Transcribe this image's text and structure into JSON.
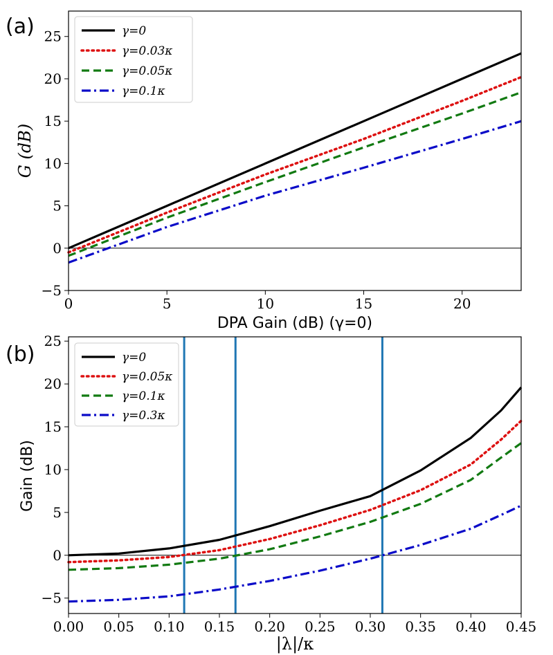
{
  "panels": [
    {
      "label": "(a)",
      "xlabel": "DPA Gain (dB) (γ=0)",
      "ylabel": "G (dB)",
      "legend_position": "top-left",
      "chart_data": {
        "type": "line",
        "xlim": [
          0,
          23
        ],
        "ylim": [
          -5,
          28
        ],
        "xticks": [
          0,
          5,
          10,
          15,
          20
        ],
        "xtick_labels": [
          "0",
          "5",
          "10",
          "15",
          "20"
        ],
        "yticks": [
          -5,
          0,
          5,
          10,
          15,
          20,
          25
        ],
        "ytick_labels": [
          "−5",
          "0",
          "5",
          "10",
          "15",
          "20",
          "25"
        ],
        "hline": 0,
        "vlines": [],
        "series": [
          {
            "name": "γ=0",
            "color": "#000000",
            "dash": "solid",
            "x": [
              0,
              5,
              10,
              15,
              20,
              23
            ],
            "y": [
              0,
              5,
              10,
              15,
              20,
              23
            ]
          },
          {
            "name": "γ=0.03κ",
            "color": "#dd1111",
            "dash": "dotted",
            "x": [
              0,
              5,
              10,
              15,
              20,
              23
            ],
            "y": [
              -0.5,
              4.2,
              8.7,
              12.9,
              17.4,
              20.2
            ]
          },
          {
            "name": "γ=0.05κ",
            "color": "#127a12",
            "dash": "dashed",
            "x": [
              0,
              5,
              10,
              15,
              20,
              23
            ],
            "y": [
              -0.9,
              3.6,
              7.8,
              11.9,
              15.9,
              18.4
            ]
          },
          {
            "name": "γ=0.1κ",
            "color": "#0b0bc8",
            "dash": "dashdot",
            "x": [
              0,
              5,
              10,
              15,
              20,
              23
            ],
            "y": [
              -1.7,
              2.5,
              6.2,
              9.5,
              12.9,
              15.0
            ]
          }
        ]
      }
    },
    {
      "label": "(b)",
      "xlabel": "|λ|/κ",
      "ylabel": "Gain (dB)",
      "legend_position": "top-left",
      "chart_data": {
        "type": "line",
        "xlim": [
          0,
          0.45
        ],
        "ylim": [
          -6.8,
          25.5
        ],
        "xticks": [
          0,
          0.05,
          0.1,
          0.15,
          0.2,
          0.25,
          0.3,
          0.35,
          0.4,
          0.45
        ],
        "xtick_labels": [
          "0.00",
          "0.05",
          "0.10",
          "0.15",
          "0.20",
          "0.25",
          "0.30",
          "0.35",
          "0.40",
          "0.45"
        ],
        "yticks": [
          -5,
          0,
          5,
          10,
          15,
          20,
          25
        ],
        "ytick_labels": [
          "−5",
          "0",
          "5",
          "10",
          "15",
          "20",
          "25"
        ],
        "hline": 0,
        "vlines": [
          0.115,
          0.166,
          0.312
        ],
        "vline_color": "#1f77b4",
        "series": [
          {
            "name": "γ=0",
            "color": "#000000",
            "dash": "solid",
            "x": [
              0,
              0.05,
              0.1,
              0.15,
              0.2,
              0.25,
              0.3,
              0.35,
              0.4,
              0.43,
              0.45
            ],
            "y": [
              0,
              0.2,
              0.8,
              1.8,
              3.4,
              5.2,
              6.9,
              9.9,
              13.7,
              16.9,
              19.6
            ]
          },
          {
            "name": "γ=0.05κ",
            "color": "#dd1111",
            "dash": "dotted",
            "x": [
              0,
              0.05,
              0.1,
              0.15,
              0.2,
              0.25,
              0.3,
              0.35,
              0.4,
              0.43,
              0.45
            ],
            "y": [
              -0.8,
              -0.6,
              -0.2,
              0.6,
              1.9,
              3.5,
              5.3,
              7.6,
              10.6,
              13.5,
              15.7
            ]
          },
          {
            "name": "γ=0.1κ",
            "color": "#127a12",
            "dash": "dashed",
            "x": [
              0,
              0.05,
              0.1,
              0.15,
              0.2,
              0.25,
              0.3,
              0.35,
              0.4,
              0.43,
              0.45
            ],
            "y": [
              -1.7,
              -1.5,
              -1.1,
              -0.4,
              0.7,
              2.2,
              3.9,
              6.0,
              8.8,
              11.4,
              13.1
            ]
          },
          {
            "name": "γ=0.3κ",
            "color": "#0b0bc8",
            "dash": "dashdot",
            "x": [
              0,
              0.05,
              0.1,
              0.15,
              0.2,
              0.25,
              0.3,
              0.35,
              0.4,
              0.43,
              0.45
            ],
            "y": [
              -5.4,
              -5.2,
              -4.8,
              -4.0,
              -3.0,
              -1.8,
              -0.4,
              1.2,
              3.1,
              4.7,
              5.8
            ]
          }
        ]
      }
    }
  ]
}
